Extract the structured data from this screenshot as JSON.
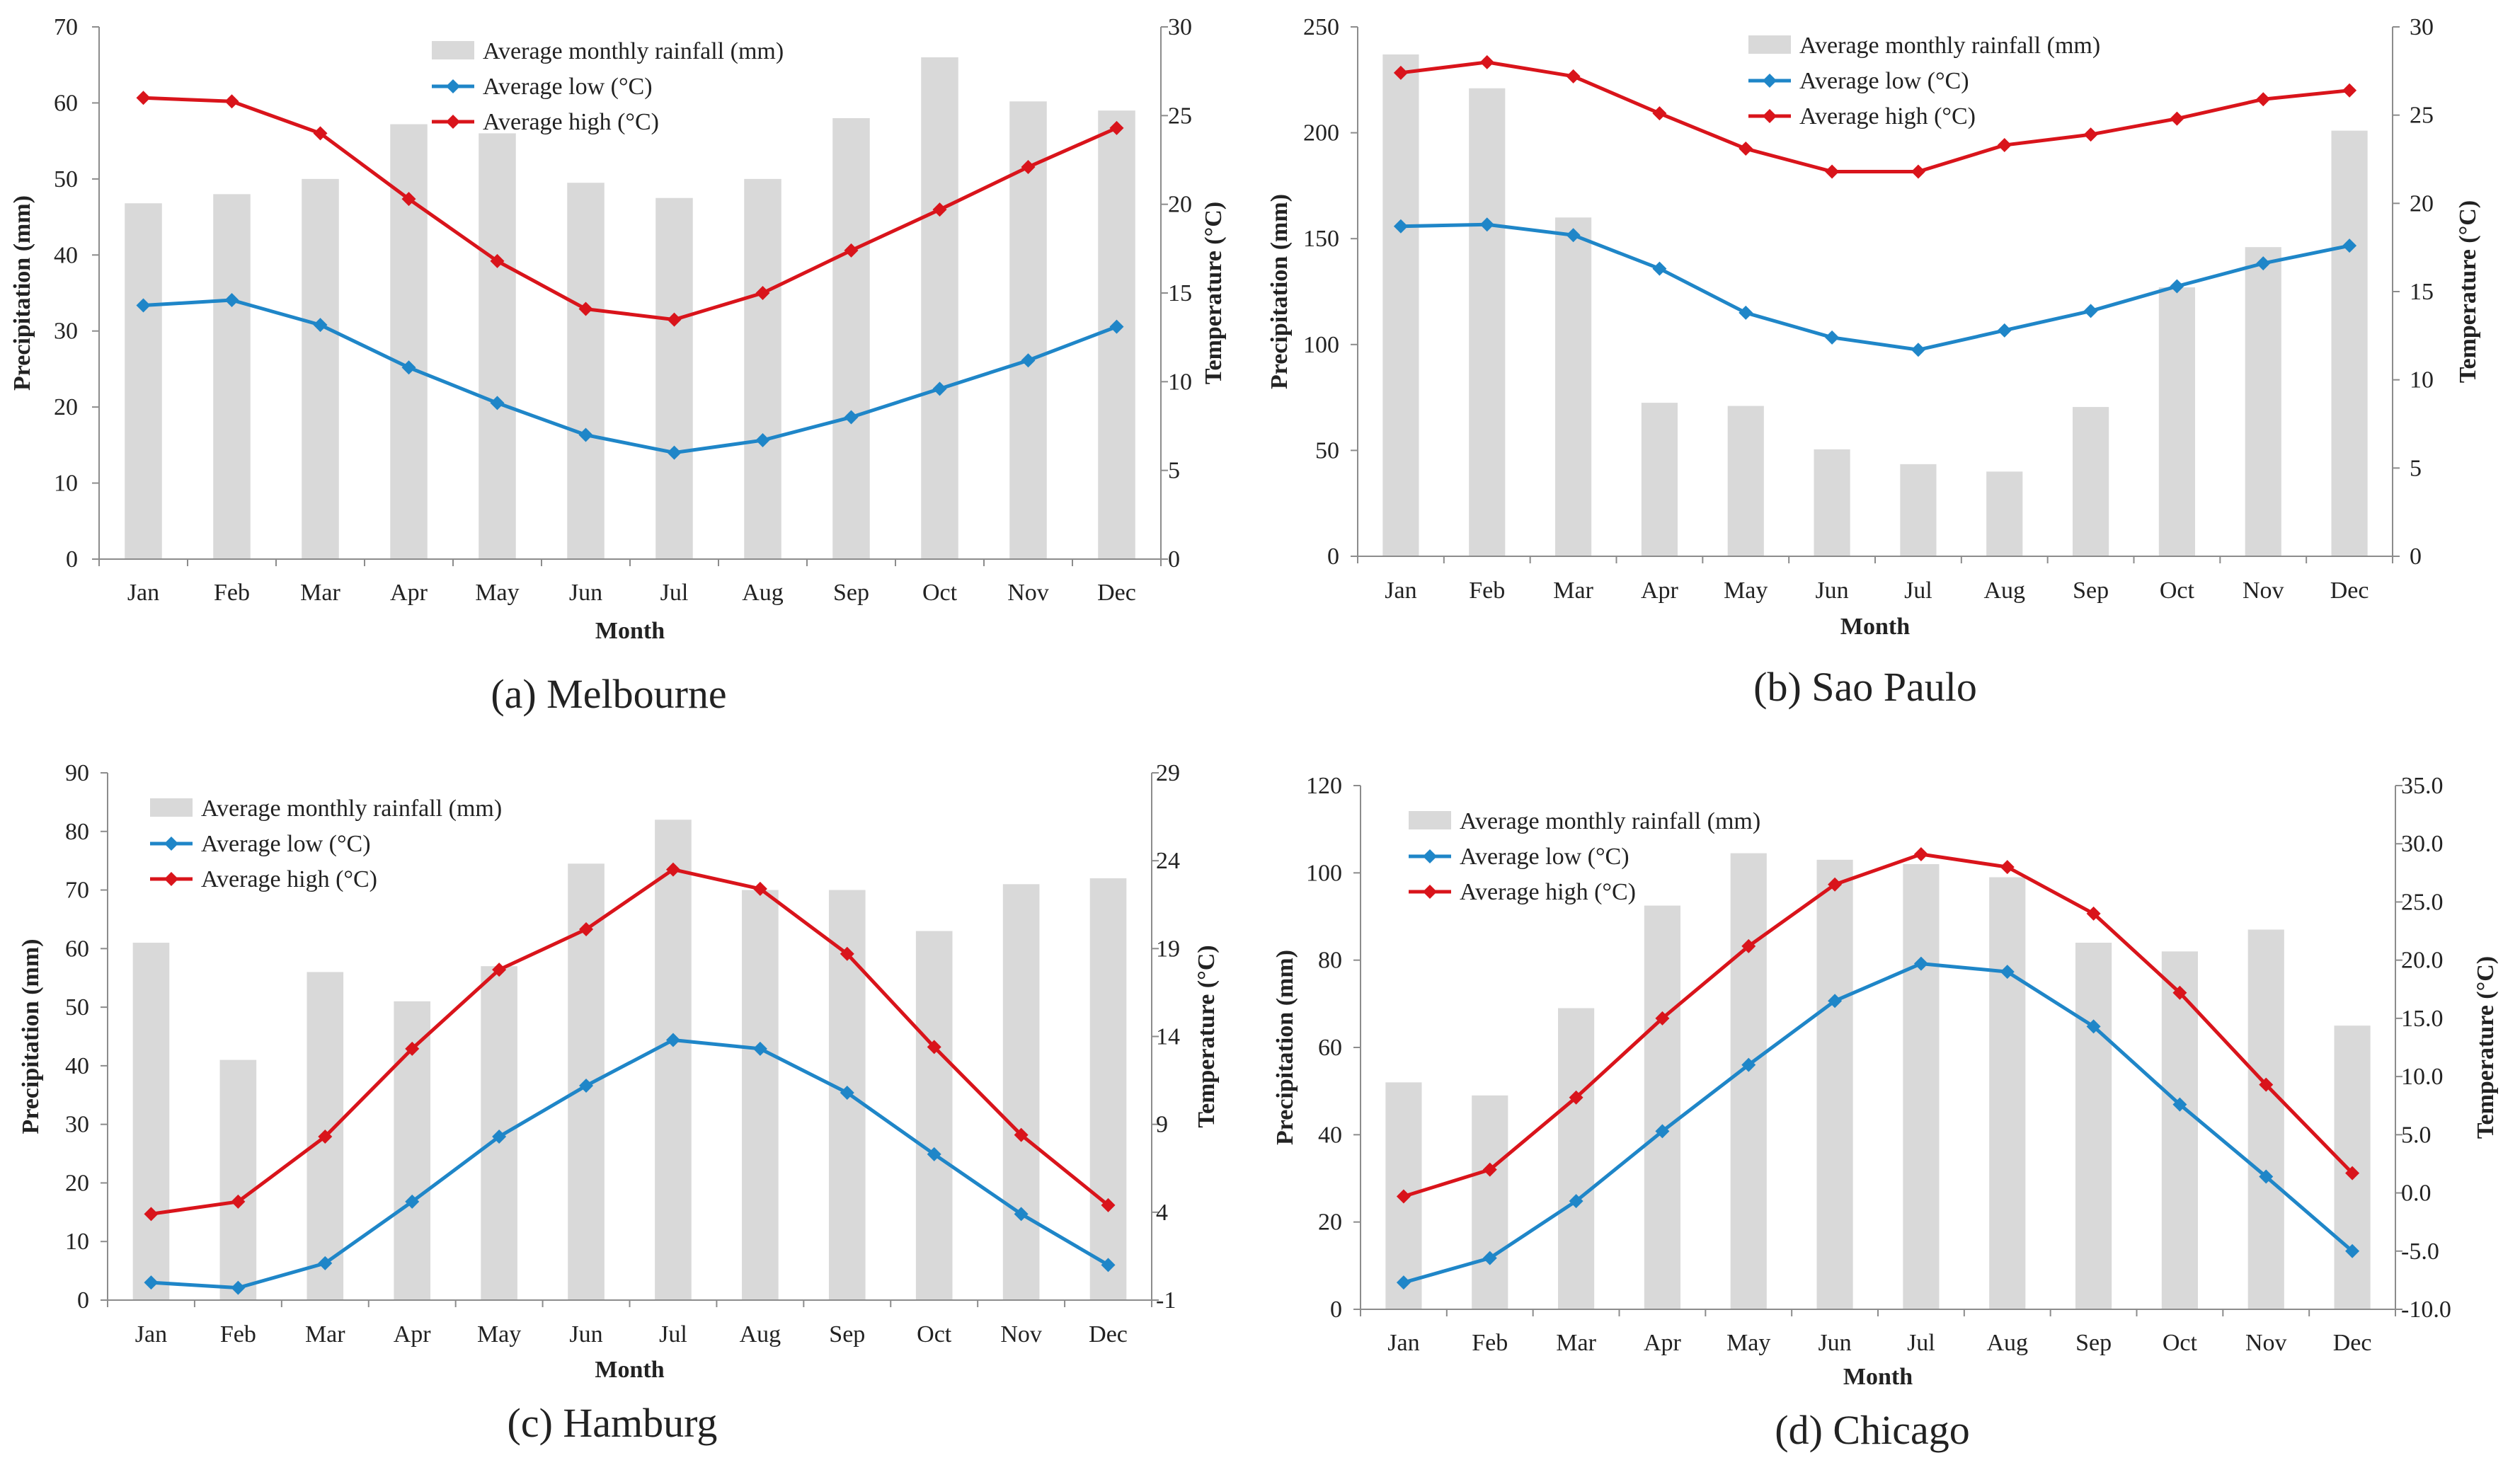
{
  "figure": {
    "legend": {
      "rainfall": "Average monthly rainfall (mm)",
      "low": "Average low (°C)",
      "high": "Average high (°C)"
    },
    "colors": {
      "bar": "#d9d9d9",
      "low": "#1f86c8",
      "high": "#d9141b",
      "axis": "#8c8c8c"
    }
  },
  "chart_data": [
    {
      "type": "bar+line",
      "title": "(a) Melbourne",
      "categories": [
        "Jan",
        "Feb",
        "Mar",
        "Apr",
        "May",
        "Jun",
        "Jul",
        "Aug",
        "Sep",
        "Oct",
        "Nov",
        "Dec"
      ],
      "xlabel": "Month",
      "ylabel": "Precipitation (mm)",
      "y2label": "Temperature (°C)",
      "ylim": [
        0,
        70
      ],
      "yticks": [
        0,
        10,
        20,
        30,
        40,
        50,
        60,
        70
      ],
      "ytick_labels": [
        "0",
        "10",
        "20",
        "30",
        "40",
        "50",
        "60",
        "70"
      ],
      "y2lim": [
        0,
        30
      ],
      "y2ticks": [
        0,
        5,
        10,
        15,
        20,
        25,
        30
      ],
      "y2tick_labels": [
        "0",
        "5",
        "10",
        "15",
        "20",
        "25",
        "30"
      ],
      "series": [
        {
          "name": "Average monthly rainfall (mm)",
          "kind": "bar",
          "axis": "left",
          "values": [
            46.8,
            48.0,
            50.0,
            57.2,
            56.0,
            49.5,
            47.5,
            50.0,
            58.0,
            66.0,
            60.2,
            59.0
          ]
        },
        {
          "name": "Average low (°C)",
          "kind": "line",
          "axis": "right",
          "values": [
            14.3,
            14.6,
            13.2,
            10.8,
            8.8,
            7.0,
            6.0,
            6.7,
            8.0,
            9.6,
            11.2,
            13.1
          ]
        },
        {
          "name": "Average high (°C)",
          "kind": "line",
          "axis": "right",
          "values": [
            26.0,
            25.8,
            24.0,
            20.3,
            16.8,
            14.1,
            13.5,
            15.0,
            17.4,
            19.7,
            22.1,
            24.3
          ]
        }
      ]
    },
    {
      "type": "bar+line",
      "title": "(b) Sao Paulo",
      "categories": [
        "Jan",
        "Feb",
        "Mar",
        "Apr",
        "May",
        "Jun",
        "Jul",
        "Aug",
        "Sep",
        "Oct",
        "Nov",
        "Dec"
      ],
      "xlabel": "Month",
      "ylabel": "Precipitation (mm)",
      "y2label": "Temperature (°C)",
      "ylim": [
        0,
        250
      ],
      "yticks": [
        0,
        50,
        100,
        150,
        200,
        250
      ],
      "ytick_labels": [
        "0",
        "50",
        "100",
        "150",
        "200",
        "250"
      ],
      "y2lim": [
        0,
        30
      ],
      "y2ticks": [
        0,
        5,
        10,
        15,
        20,
        25,
        30
      ],
      "y2tick_labels": [
        "0",
        "5",
        "10",
        "15",
        "20",
        "25",
        "30"
      ],
      "series": [
        {
          "name": "Average monthly rainfall (mm)",
          "kind": "bar",
          "axis": "left",
          "values": [
            237.0,
            221.0,
            160.0,
            72.5,
            71.0,
            50.5,
            43.5,
            40.0,
            70.5,
            127.0,
            146.0,
            201.0
          ]
        },
        {
          "name": "Average low (°C)",
          "kind": "line",
          "axis": "right",
          "values": [
            18.7,
            18.8,
            18.2,
            16.3,
            13.8,
            12.4,
            11.7,
            12.8,
            13.9,
            15.3,
            16.6,
            17.6
          ]
        },
        {
          "name": "Average high (°C)",
          "kind": "line",
          "axis": "right",
          "values": [
            27.4,
            28.0,
            27.2,
            25.1,
            23.1,
            21.8,
            21.8,
            23.3,
            23.9,
            24.8,
            25.9,
            26.4
          ]
        }
      ]
    },
    {
      "type": "bar+line",
      "title": "(c) Hamburg",
      "categories": [
        "Jan",
        "Feb",
        "Mar",
        "Apr",
        "May",
        "Jun",
        "Jul",
        "Aug",
        "Sep",
        "Oct",
        "Nov",
        "Dec"
      ],
      "xlabel": "Month",
      "ylabel": "Precipitation (mm)",
      "y2label": "Temperature (°C)",
      "ylim": [
        0,
        90
      ],
      "yticks": [
        0,
        10,
        20,
        30,
        40,
        50,
        60,
        70,
        80,
        90
      ],
      "ytick_labels": [
        "0",
        "10",
        "20",
        "30",
        "40",
        "50",
        "60",
        "70",
        "80",
        "90"
      ],
      "y2lim": [
        -1,
        29
      ],
      "y2ticks": [
        -1,
        4,
        9,
        14,
        19,
        24,
        29
      ],
      "y2tick_labels": [
        "-1",
        "4",
        "9",
        "14",
        "19",
        "24",
        "29"
      ],
      "series": [
        {
          "name": "Average monthly rainfall (mm)",
          "kind": "bar",
          "axis": "left",
          "values": [
            61.0,
            41.0,
            56.0,
            51.0,
            57.0,
            74.5,
            82.0,
            70.0,
            70.0,
            63.0,
            71.0,
            72.0
          ]
        },
        {
          "name": "Average low (°C)",
          "kind": "line",
          "axis": "right",
          "values": [
            0.0,
            -0.3,
            1.1,
            4.6,
            8.3,
            11.2,
            13.8,
            13.3,
            10.8,
            7.3,
            3.9,
            1.0
          ]
        },
        {
          "name": "Average high (°C)",
          "kind": "line",
          "axis": "right",
          "values": [
            3.9,
            4.6,
            8.3,
            13.3,
            17.8,
            20.1,
            23.5,
            22.4,
            18.7,
            13.4,
            8.4,
            4.4
          ]
        }
      ]
    },
    {
      "type": "bar+line",
      "title": "(d) Chicago",
      "categories": [
        "Jan",
        "Feb",
        "Mar",
        "Apr",
        "May",
        "Jun",
        "Jul",
        "Aug",
        "Sep",
        "Oct",
        "Nov",
        "Dec"
      ],
      "xlabel": "Month",
      "ylabel": "Precipitation (mm)",
      "y2label": "Temperature (°C)",
      "ylim": [
        0,
        120
      ],
      "yticks": [
        0,
        20,
        40,
        60,
        80,
        100,
        120
      ],
      "ytick_labels": [
        "0",
        "20",
        "40",
        "60",
        "80",
        "100",
        "120"
      ],
      "y2lim": [
        -10,
        35
      ],
      "y2ticks": [
        -10,
        -5,
        0,
        5,
        10,
        15,
        20,
        25,
        30,
        35
      ],
      "y2tick_labels": [
        "-10.0",
        "-5.0",
        "0.0",
        "5.0",
        "10.0",
        "15.0",
        "20.0",
        "25.0",
        "30.0",
        "35.0"
      ],
      "series": [
        {
          "name": "Average monthly rainfall (mm)",
          "kind": "bar",
          "axis": "left",
          "values": [
            52.0,
            49.0,
            69.0,
            92.5,
            104.5,
            103.0,
            102.0,
            99.0,
            84.0,
            82.0,
            87.0,
            65.0
          ]
        },
        {
          "name": "Average low (°C)",
          "kind": "line",
          "axis": "right",
          "values": [
            -7.7,
            -5.6,
            -0.7,
            5.3,
            11.0,
            16.5,
            19.7,
            19.0,
            14.3,
            7.6,
            1.4,
            -5.0
          ]
        },
        {
          "name": "Average high (°C)",
          "kind": "line",
          "axis": "right",
          "values": [
            -0.3,
            2.0,
            8.2,
            15.0,
            21.2,
            26.5,
            29.1,
            28.0,
            24.0,
            17.2,
            9.3,
            1.7
          ]
        }
      ]
    }
  ]
}
